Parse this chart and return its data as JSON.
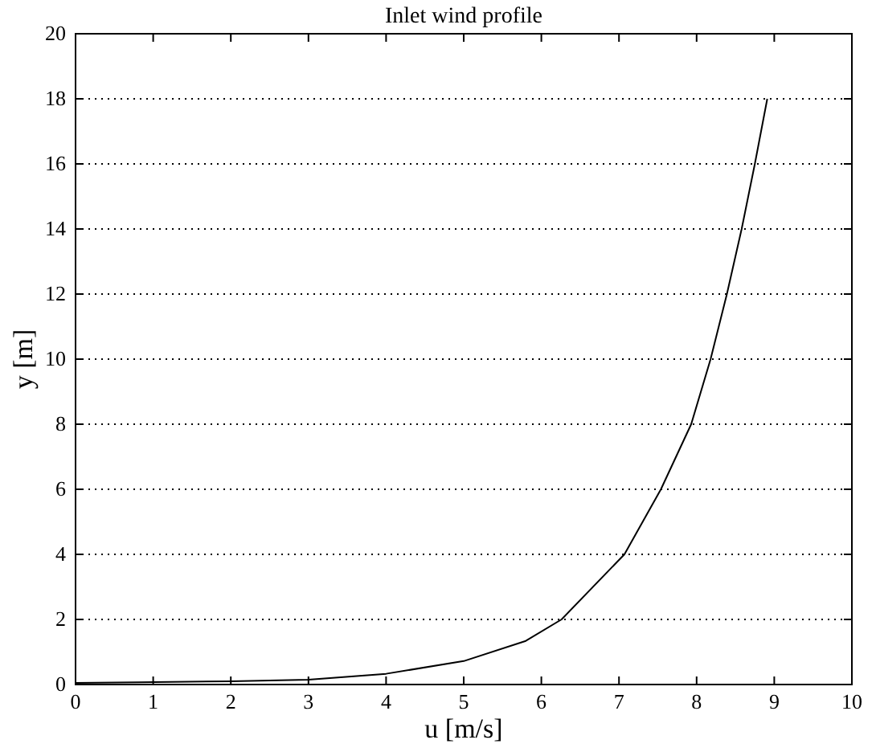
{
  "chart_data": {
    "type": "line",
    "title": "Inlet wind profile",
    "xlabel": "u [m/s]",
    "ylabel": "y [m]",
    "series": [
      {
        "color": "#000000",
        "x": [
          0,
          0.8,
          2,
          3,
          4,
          5,
          5.8,
          6.26,
          7.07,
          7.54,
          7.93,
          8.18,
          8.39,
          8.58,
          8.75,
          8.91
        ],
        "values": [
          0.05,
          0.07,
          0.1,
          0.15,
          0.33,
          0.72,
          1.34,
          2,
          4,
          6,
          8,
          10,
          12,
          14,
          16,
          18
        ]
      }
    ],
    "xlim": [
      0,
      10
    ],
    "ylim": [
      0,
      20
    ],
    "xticks": [
      0,
      1,
      2,
      3,
      4,
      5,
      6,
      7,
      8,
      9,
      10
    ],
    "yticks": [
      0,
      2,
      4,
      6,
      8,
      10,
      12,
      14,
      16,
      18,
      20
    ],
    "grid": "y",
    "marker": "none",
    "line_style": "solid"
  }
}
